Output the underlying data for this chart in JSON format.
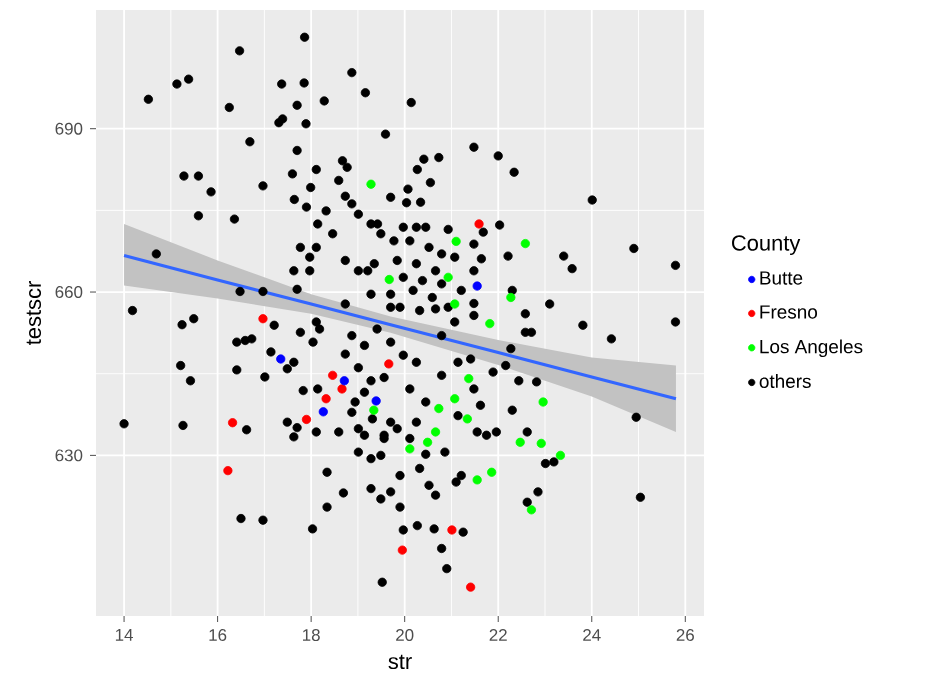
{
  "chart_data": {
    "type": "scatter",
    "xlabel": "str",
    "ylabel": "testscr",
    "legend_title": "County",
    "xlim": [
      13.4,
      26.4
    ],
    "ylim": [
      600.5,
      711.8
    ],
    "xticks": [
      14,
      16,
      18,
      20,
      22,
      24,
      26
    ],
    "yticks": [
      630,
      660,
      690
    ],
    "grid": true,
    "legend": "right",
    "series": [
      {
        "name": "Butte",
        "marker": "circle",
        "color": "#0000ff",
        "x": [
          17.35,
          18.71,
          18.26,
          19.39,
          21.55
        ],
        "values": [
          647.7,
          643.7,
          638.0,
          640.0,
          661.1
        ]
      },
      {
        "name": "Fresno",
        "marker": "circle",
        "color": "#ff0000",
        "x": [
          16.97,
          18.46,
          18.66,
          18.32,
          17.9,
          19.66,
          16.32,
          16.22,
          21.59,
          21.01,
          19.95,
          21.41
        ],
        "values": [
          655.1,
          644.7,
          642.2,
          640.4,
          636.6,
          646.8,
          636.0,
          627.2,
          672.5,
          616.3,
          612.6,
          605.8
        ]
      },
      {
        "name": "Los Angeles",
        "marker": "circle",
        "color": "#00ff00",
        "x": [
          19.28,
          21.1,
          22.58,
          20.93,
          19.67,
          22.27,
          21.07,
          19.34,
          21.82,
          22.96,
          22.92,
          22.47,
          23.33,
          22.71,
          21.86,
          21.55,
          21.34,
          20.73,
          20.66,
          20.49,
          20.11,
          21.37,
          21.07
        ],
        "values": [
          679.8,
          669.3,
          668.9,
          662.7,
          662.3,
          659.0,
          657.8,
          638.3,
          654.2,
          639.8,
          632.2,
          632.4,
          630.0,
          620.0,
          626.9,
          625.5,
          636.7,
          638.6,
          634.3,
          632.4,
          631.2,
          644.1,
          640.4
        ]
      },
      {
        "name": "others",
        "marker": "circle",
        "color": "#000000",
        "x": [
          17.86,
          16.47,
          14.52,
          15.13,
          15.38,
          16.25,
          17.37,
          17.85,
          18.87,
          19.16,
          17.7,
          18.28,
          17.31,
          17.39,
          17.89,
          19.59,
          16.69,
          17.7,
          18.67,
          18.77,
          15.28,
          15.59,
          15.86,
          16.97,
          17.6,
          18.11,
          17.64,
          17.99,
          18.59,
          19.7,
          18.73,
          18.87,
          15.59,
          16.36,
          18.32,
          17.9,
          18.14,
          18.46,
          19.01,
          19.28,
          19.49,
          14.69,
          17.77,
          18.11,
          17.97,
          18.73,
          19.01,
          19.21,
          19.35,
          17.63,
          17.97,
          16.48,
          16.97,
          17.7,
          18.73,
          19.28,
          19.7,
          14.18,
          20.14,
          21.48,
          22.0,
          22.34,
          20.41,
          20.73,
          20.27,
          20.55,
          24.01,
          20.07,
          20.04,
          20.34,
          22.03,
          21.68,
          21.48,
          24.9,
          25.79,
          23.4,
          23.58,
          22.21,
          21.64,
          22.3,
          21.48,
          23.1,
          22.58,
          19.42,
          19.97,
          20.25,
          20.45,
          20.93,
          19.77,
          20.11,
          20.52,
          20.79,
          21.07,
          19.84,
          20.25,
          20.66,
          19.97,
          20.38,
          20.79,
          21.21,
          19.7,
          20.18,
          20.59,
          20.93,
          19.9,
          20.32,
          15.24,
          15.49,
          17.21,
          16.41,
          16.59,
          16.73,
          15.21,
          15.42,
          16.41,
          17.14,
          17.49,
          17.01,
          17.63,
          17.77,
          18.04,
          18.18,
          18.11,
          18.14,
          17.83,
          19.31,
          15.26,
          14.0,
          16.62,
          17.49,
          17.7,
          17.63,
          18.11,
          18.59,
          19.01,
          19.14,
          19.01,
          19.28,
          19.49,
          19.28,
          19.49,
          18.34,
          18.69,
          18.34,
          16.5,
          16.97,
          18.03,
          19.52,
          18.87,
          19.14,
          19.41,
          18.73,
          19.01,
          19.28,
          19.56,
          18.94,
          19.14,
          18.87,
          19.7,
          19.56,
          25.79,
          23.81,
          24.42,
          21.48,
          22.27,
          22.58,
          22.71,
          22.16,
          21.89,
          22.44,
          22.82,
          22.3,
          22.62,
          23.01,
          23.19,
          24.95,
          25.04,
          22.85,
          22.62,
          21.21,
          21.1,
          20.86,
          21.55,
          21.75,
          21.96,
          21.14,
          21.41,
          20.79,
          21.14,
          21.48,
          21.62,
          20.27,
          19.97,
          20.63,
          21.25,
          20.79,
          20.9,
          19.9,
          19.7,
          20.52,
          20.66,
          19.9,
          20.32,
          20.45,
          19.84,
          20.11,
          20.25,
          19.56,
          19.97,
          20.25,
          19.7,
          20.11,
          20.45,
          20.79,
          21.07,
          21.48,
          20.66
        ],
        "values": [
          706.8,
          704.3,
          695.4,
          698.2,
          699.1,
          693.9,
          698.2,
          698.4,
          700.3,
          696.6,
          694.3,
          695.1,
          691.1,
          691.8,
          690.9,
          689.0,
          687.6,
          686.0,
          684.1,
          682.9,
          681.3,
          681.3,
          678.4,
          679.5,
          681.7,
          682.5,
          677.0,
          679.2,
          680.5,
          677.4,
          677.6,
          676.2,
          674.0,
          673.4,
          674.9,
          675.6,
          672.5,
          670.7,
          674.3,
          672.5,
          670.7,
          667.0,
          668.2,
          668.2,
          666.4,
          665.8,
          663.9,
          663.9,
          665.2,
          663.9,
          663.9,
          660.1,
          660.1,
          660.5,
          657.8,
          659.6,
          657.2,
          656.6,
          694.8,
          686.6,
          685.0,
          682.0,
          684.4,
          684.7,
          682.5,
          680.1,
          676.9,
          678.9,
          676.4,
          676.5,
          672.3,
          671.0,
          668.8,
          668.0,
          664.9,
          666.6,
          664.3,
          666.6,
          666.1,
          660.3,
          663.9,
          657.8,
          656.0,
          672.5,
          671.9,
          671.9,
          671.9,
          671.5,
          669.4,
          669.4,
          668.2,
          667.0,
          666.4,
          665.8,
          665.2,
          663.9,
          662.7,
          662.1,
          661.5,
          660.3,
          659.6,
          660.3,
          659.0,
          657.2,
          657.2,
          656.6,
          654.0,
          655.1,
          653.9,
          650.8,
          651.1,
          651.4,
          646.5,
          643.7,
          645.7,
          649.0,
          645.9,
          644.4,
          647.1,
          652.6,
          650.8,
          653.2,
          654.5,
          642.2,
          641.9,
          636.7,
          635.5,
          635.8,
          634.7,
          636.1,
          635.1,
          633.4,
          634.3,
          634.3,
          634.9,
          633.7,
          630.6,
          629.4,
          630.0,
          623.9,
          622.0,
          626.9,
          623.1,
          620.5,
          618.4,
          618.1,
          616.5,
          606.7,
          652.0,
          650.2,
          653.2,
          648.6,
          646.1,
          643.7,
          644.3,
          639.8,
          641.6,
          637.9,
          636.1,
          633.1,
          654.5,
          653.9,
          651.4,
          657.9,
          649.6,
          652.6,
          652.6,
          646.5,
          645.3,
          643.7,
          643.5,
          638.3,
          634.3,
          628.5,
          628.8,
          637.0,
          622.3,
          623.3,
          621.4,
          626.3,
          625.1,
          630.6,
          634.3,
          633.7,
          634.3,
          637.3,
          647.7,
          644.7,
          647.1,
          642.2,
          639.2,
          617.1,
          616.3,
          616.5,
          615.9,
          612.9,
          609.2,
          620.5,
          623.3,
          624.5,
          622.7,
          626.3,
          627.6,
          630.2,
          634.9,
          633.1,
          636.1,
          633.7,
          648.4,
          647.1,
          650.8,
          642.2,
          639.8,
          652.0,
          654.5,
          655.7,
          656.9
        ]
      },
      {
        "type": "line",
        "marker": "none",
        "color": "#3366ff",
        "x": [
          14,
          16,
          18,
          19.7,
          22,
          24,
          25.8
        ],
        "values": [
          666.7,
          662.2,
          657.8,
          654.0,
          648.9,
          644.4,
          640.4
        ],
        "lower": [
          661.2,
          658.8,
          656.0,
          652.5,
          646.6,
          640.8,
          634.3
        ],
        "upper": [
          672.5,
          665.8,
          659.6,
          655.5,
          651.2,
          648.0,
          646.5
        ]
      }
    ]
  }
}
